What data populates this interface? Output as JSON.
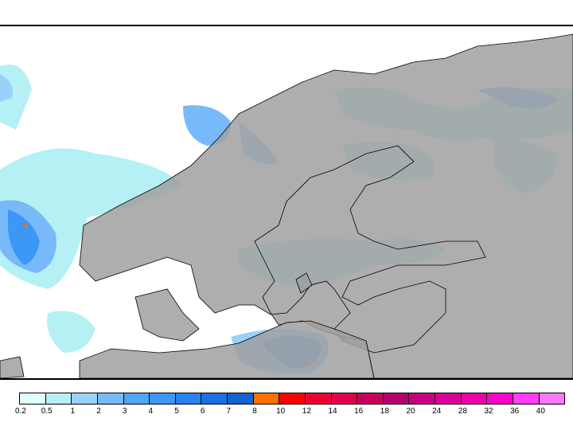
{
  "legend": {
    "labels": [
      "0.2",
      "0.5",
      "1",
      "2",
      "3",
      "4",
      "5",
      "6",
      "7",
      "8",
      "10",
      "12",
      "14",
      "16",
      "18",
      "20",
      "24",
      "28",
      "32",
      "36",
      "40"
    ],
    "colors": [
      "#e0ffff",
      "#b4f0f4",
      "#98d2fa",
      "#78b9fa",
      "#50a5f5",
      "#3c97f5",
      "#2882f0",
      "#1e6ee6",
      "#1463d2",
      "#ff7000",
      "#ff0000",
      "#f00032",
      "#e1004b",
      "#c8005a",
      "#b4006e",
      "#c80082",
      "#dc0096",
      "#f000aa",
      "#ff00c8",
      "#ff3cff",
      "#ff78ff"
    ]
  },
  "map": {
    "land_color": "#a0a0a0",
    "sea_color": "#ffffff"
  }
}
